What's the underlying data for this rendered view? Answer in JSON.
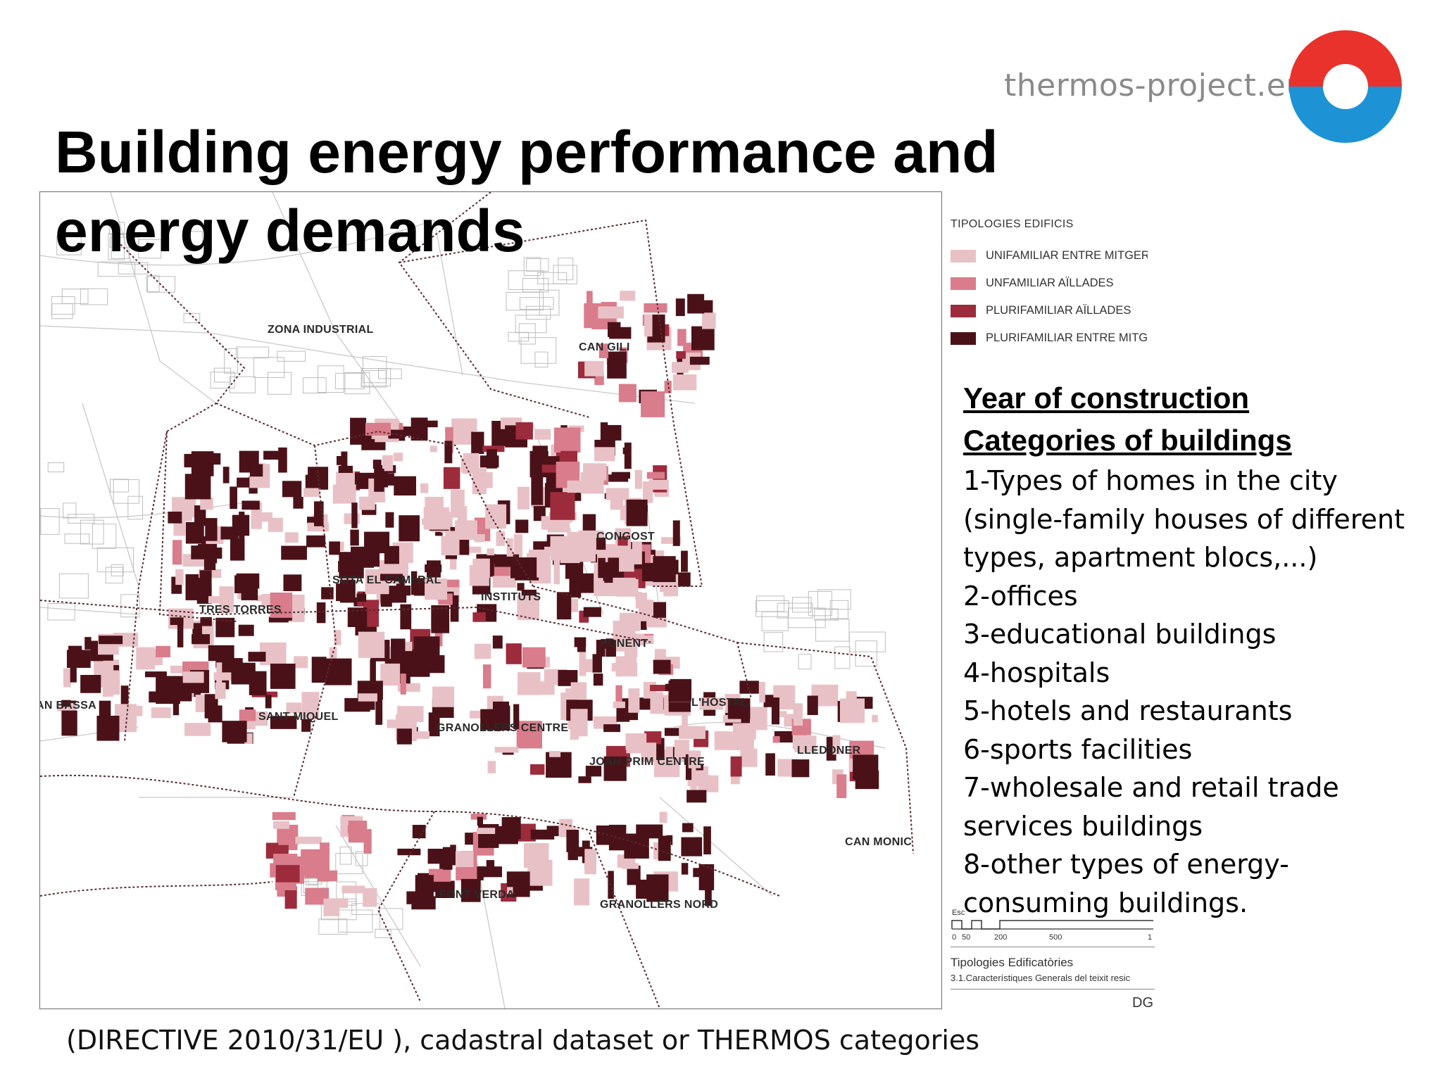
{
  "slide": {
    "title_line1": "Building energy performance and",
    "title_line2": "energy demands",
    "brand_url": "thermos-project.eu",
    "logo_colors": {
      "top": "#e8322b",
      "bottom": "#1d93d6"
    },
    "footnote": "(DIRECTIVE 2010/31/EU ), cadastral dataset or THERMOS categories"
  },
  "map": {
    "district_labels": [
      "ZONA INDUSTRIAL",
      "CAN GILI",
      "CONGOST",
      "SOTA EL CAMÍ RAL",
      "INSTITUTS",
      "TRES TORRES",
      "PONENT",
      "AN BASSA",
      "SANT MIQUEL",
      "GRANOLLERS CENTRE",
      "L'HOSTAL",
      "LLEDONER",
      "JOAN PRIM CENTRE",
      "CAN MONIC",
      "FONT VERDA",
      "GRANOLLERS NORD"
    ],
    "legend": {
      "title": "TIPOLOGIES EDIFICIS",
      "items": [
        {
          "label": "UNIFAMILIAR ENTRE MITGERI",
          "color": "#e8c1c6"
        },
        {
          "label": "UNFAMILIAR AÏLLADES",
          "color": "#d97c8b"
        },
        {
          "label": "PLURIFAMILIAR AÏLLADES",
          "color": "#9c2b3c"
        },
        {
          "label": "PLURIFAMILIAR ENTRE MITGE",
          "color": "#4a1218"
        }
      ]
    },
    "scale": {
      "label": "Esc",
      "ticks": [
        "0",
        "50",
        "200",
        "500",
        "1"
      ]
    },
    "sheet_footer": {
      "line1": "Tipologies Edificatòries",
      "line2": "3.1.Característiques Generals del teixit resic",
      "code": "DG"
    }
  },
  "categories": {
    "heading1": "Year of construction",
    "heading2": "Categories of buildings",
    "items": [
      "1-Types of homes in the city",
      "(single-family houses of different",
      "types, apartment blocs,...)",
      "2-offices",
      "3-educational buildings",
      "4-hospitals",
      "5-hotels and restaurants",
      "6-sports facilities",
      "7-wholesale and retail trade",
      "services buildings",
      "8-other types of energy-",
      "consuming buildings."
    ]
  }
}
